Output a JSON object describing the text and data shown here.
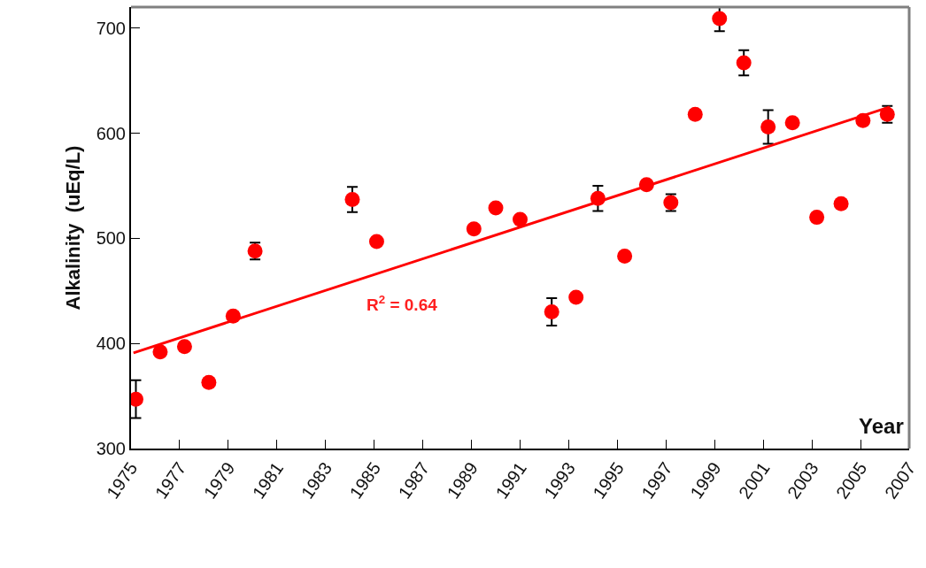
{
  "chart_data": {
    "type": "scatter",
    "ylabel": "Alkalinity  (uEq/L)",
    "xlabel": "Year",
    "xlim": [
      1975,
      2007
    ],
    "xticks": [
      1975,
      1977,
      1979,
      1981,
      1983,
      1985,
      1987,
      1989,
      1991,
      1993,
      1995,
      1997,
      1999,
      2001,
      2003,
      2005,
      2007
    ],
    "ylim": [
      300,
      720
    ],
    "yticks": [
      300,
      400,
      500,
      600,
      700
    ],
    "marker": "circle",
    "series": [
      {
        "color": "#ff0000",
        "x": [
          1975.2,
          1976.2,
          1977.2,
          1978.2,
          1979.2,
          1980.1,
          1984.1,
          1985.1,
          1989.1,
          1990.0,
          1991.0,
          1992.3,
          1993.3,
          1994.2,
          1995.3,
          1996.2,
          1997.2,
          1998.2,
          1999.2,
          2000.2,
          2001.2,
          2002.2,
          2003.2,
          2004.2,
          2005.1,
          2006.1
        ],
        "values": [
          347,
          392,
          397,
          363,
          426,
          488,
          537,
          497,
          509,
          529,
          518,
          430,
          444,
          538,
          483,
          551,
          534,
          618,
          709,
          667,
          606,
          610,
          520,
          533,
          612,
          618
        ],
        "errors": [
          18,
          null,
          null,
          null,
          null,
          8,
          12,
          null,
          null,
          null,
          null,
          13,
          null,
          12,
          null,
          null,
          8,
          null,
          12,
          12,
          16,
          null,
          null,
          null,
          null,
          8
        ]
      },
      {
        "type": "line",
        "color": "#ff0000",
        "marker": "none",
        "x": [
          1975.1,
          2006.2
        ],
        "values": [
          391,
          625
        ]
      }
    ],
    "annotations": [
      "R$^{2}$ = 0.64"
    ]
  }
}
